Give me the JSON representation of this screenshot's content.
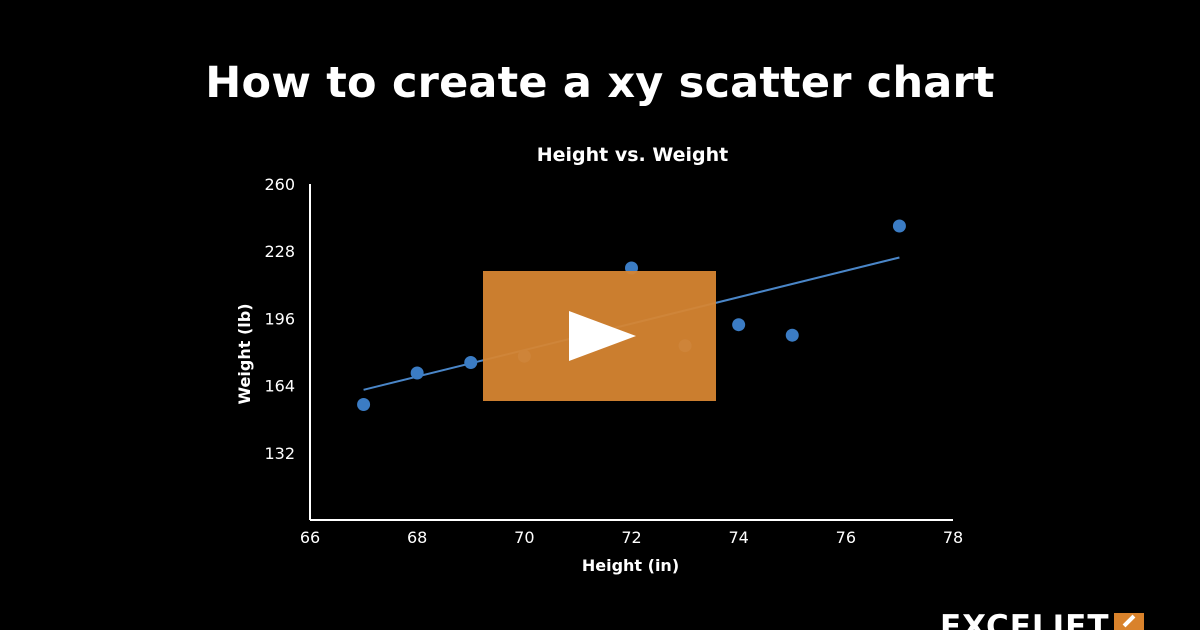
{
  "video": {
    "title": "How to create a xy scatter chart"
  },
  "brand": {
    "logo_text": "EXCELJET",
    "accent_color": "#d9822b",
    "play_icon": "play-icon"
  },
  "chart_data": {
    "type": "scatter",
    "title": "Height vs. Weight",
    "xlabel": "Height (in)",
    "ylabel": "Weight (lb)",
    "xlim": [
      66,
      78
    ],
    "ylim": [
      100,
      260
    ],
    "xticks": [
      66,
      68,
      70,
      72,
      74,
      76,
      78
    ],
    "yticks": [
      132,
      164,
      196,
      228,
      260
    ],
    "grid": false,
    "point_color": "#3b7cc4",
    "trendline": {
      "type": "linear",
      "x": [
        67,
        77
      ],
      "y": [
        162,
        225
      ],
      "color": "#4a86c8"
    },
    "series": [
      {
        "x": [
          67,
          68,
          69,
          70,
          71,
          72,
          73,
          74,
          75,
          77
        ],
        "y": [
          155,
          170,
          175,
          178,
          194,
          220,
          183,
          193,
          188,
          240
        ]
      }
    ]
  }
}
